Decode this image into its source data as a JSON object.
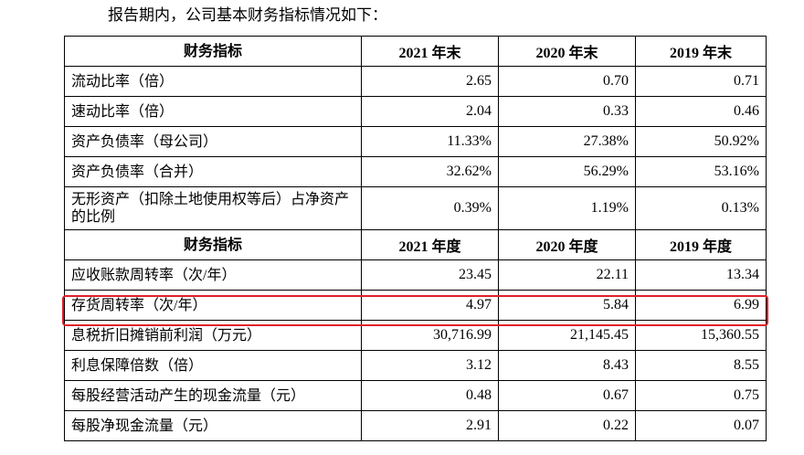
{
  "intro": "报告期内，公司基本财务指标情况如下：",
  "table": {
    "rows": [
      [
        "财务指标",
        "2021 年末",
        "2020 年末",
        "2019 年末"
      ],
      [
        "流动比率（倍）",
        "2.65",
        "0.70",
        "0.71"
      ],
      [
        "速动比率（倍）",
        "2.04",
        "0.33",
        "0.46"
      ],
      [
        "资产负债率（母公司）",
        "11.33%",
        "27.38%",
        "50.92%"
      ],
      [
        "资产负债率（合并）",
        "32.62%",
        "56.29%",
        "53.16%"
      ],
      [
        "无形资产（扣除土地使用权等后）占净资产的比例",
        "0.39%",
        "1.19%",
        "0.13%"
      ],
      [
        "财务指标",
        "2021 年度",
        "2020 年度",
        "2019 年度"
      ],
      [
        "应收账款周转率（次/年）",
        "23.45",
        "22.11",
        "13.34"
      ],
      [
        "存货周转率（次/年）",
        "4.97",
        "5.84",
        "6.99"
      ],
      [
        "息税折旧摊销前利润（万元）",
        "30,716.99",
        "21,145.45",
        "15,360.55"
      ],
      [
        "利息保障倍数（倍）",
        "3.12",
        "8.43",
        "8.55"
      ],
      [
        "每股经营活动产生的现金流量（元）",
        "0.48",
        "0.67",
        "0.75"
      ],
      [
        "每股净现金流量（元）",
        "2.91",
        "0.22",
        "0.07"
      ]
    ]
  }
}
